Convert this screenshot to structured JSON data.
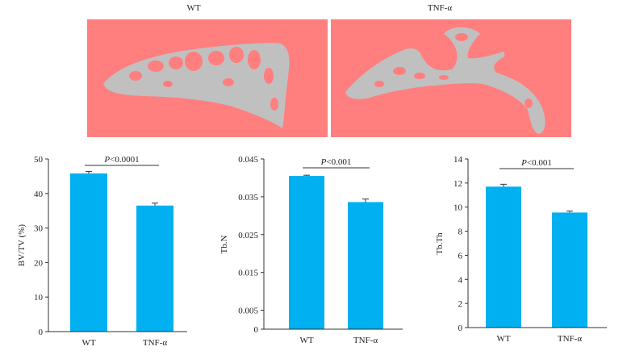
{
  "images": [
    {
      "label": "WT"
    },
    {
      "label": "TNF-α"
    }
  ],
  "colors": {
    "bar": "#00b0f0",
    "background": "#ff7f7f",
    "bone": "#c0c0c0"
  },
  "chart_data": [
    {
      "type": "bar",
      "categories": [
        "WT",
        "TNF-α"
      ],
      "values": [
        45.8,
        36.5
      ],
      "errors": [
        0.6,
        0.7
      ],
      "ylabel": "BV/TV (%)",
      "ylim": [
        0,
        50
      ],
      "yticks": [
        0,
        10,
        20,
        30,
        40,
        50
      ],
      "ytick_labels": [
        "0",
        "10",
        "20",
        "30",
        "40",
        "50"
      ],
      "significance": {
        "p_prefix": "P",
        "p_suffix": "<0.0001"
      }
    },
    {
      "type": "bar",
      "categories": [
        "WT",
        "TNF-α"
      ],
      "values": [
        0.0405,
        0.0336
      ],
      "errors": [
        0.0002,
        0.0008
      ],
      "ylabel": "Tb.N",
      "ylim": [
        0,
        0.045
      ],
      "yticks": [
        0,
        0.005,
        0.015,
        0.025,
        0.035,
        0.045
      ],
      "ytick_labels": [
        "0",
        "0.005",
        "0.015",
        "0.025",
        "0.035",
        "0.045"
      ],
      "significance": {
        "p_prefix": "P",
        "p_suffix": "<0.001"
      }
    },
    {
      "type": "bar",
      "categories": [
        "WT",
        "TNF-α"
      ],
      "values": [
        11.7,
        9.55
      ],
      "errors": [
        0.2,
        0.12
      ],
      "ylabel": "Tb.Th",
      "ylim": [
        0,
        14
      ],
      "yticks": [
        0,
        2,
        4,
        6,
        8,
        10,
        12,
        14
      ],
      "ytick_labels": [
        "0",
        "2",
        "4",
        "6",
        "8",
        "10",
        "12",
        "14"
      ],
      "significance": {
        "p_prefix": "P",
        "p_suffix": "<0.001"
      }
    }
  ]
}
